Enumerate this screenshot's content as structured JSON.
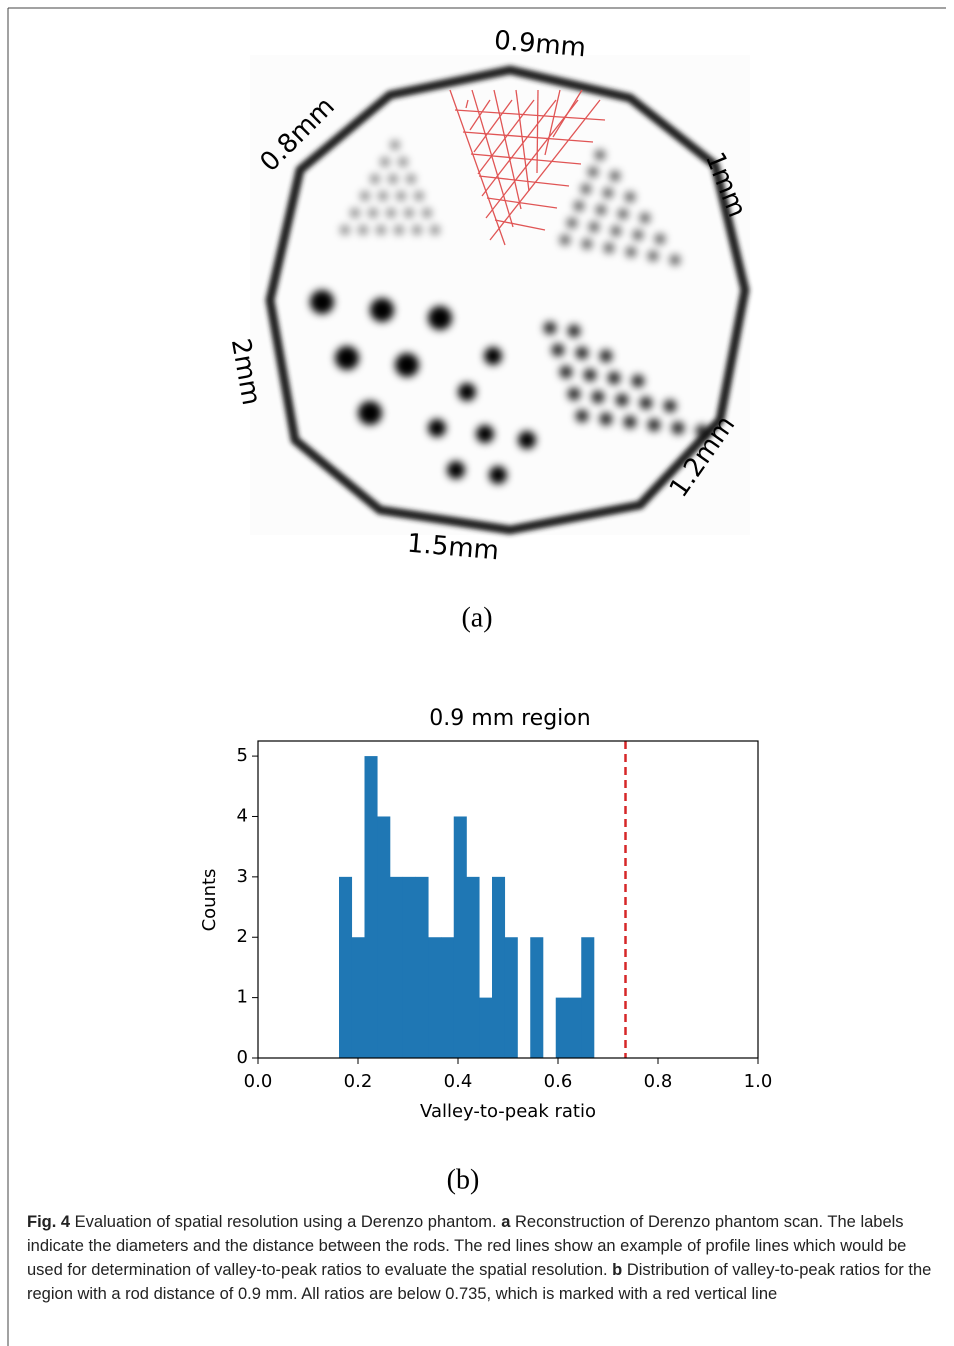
{
  "panel_a": {
    "labels": [
      "0.9mm",
      "0.8mm",
      "1mm",
      "2mm",
      "1.2mm",
      "1.5mm"
    ],
    "panel_label": "(a)"
  },
  "chart_data": {
    "type": "histogram",
    "title": "0.9 mm region",
    "x_label": "Valley-to-peak ratio",
    "y_label": "Counts",
    "bins": [
      0.162,
      0.1875,
      0.213,
      0.2385,
      0.264,
      0.2895,
      0.315,
      0.3405,
      0.366,
      0.3915,
      0.417,
      0.4425,
      0.468,
      0.4935,
      0.519,
      0.5445,
      0.57,
      0.5955,
      0.621,
      0.6465,
      0.672
    ],
    "counts": [
      3,
      2,
      5,
      4,
      3,
      3,
      3,
      2,
      2,
      4,
      3,
      1,
      3,
      2,
      0,
      2,
      0,
      1,
      1,
      2
    ],
    "color": "#1f77b4",
    "threshold": 0.735,
    "threshold_color": "#d62728",
    "xlim": [
      0,
      1
    ],
    "ylim": [
      0,
      5.25
    ],
    "xticks": [
      {
        "value": 0,
        "label": "0.0"
      },
      0.2,
      0.4,
      0.6,
      0.8,
      {
        "value": 1,
        "label": "1.0"
      }
    ],
    "yticks": [
      0,
      1,
      2,
      3,
      4,
      5
    ]
  },
  "panel_b_label": "(b)",
  "caption": {
    "figure_label": "Fig. 4",
    "text": " Evaluation of spatial resolution using a Derenzo phantom. ",
    "a": "a",
    "text_a": " Reconstruction of Derenzo phantom scan. The labels indicate the diameters and the distance between the rods. The red lines show an example of profile lines which would be used for determination of valley-to-peak ratios to evaluate the spatial resolution. ",
    "b": "b",
    "text_b": " Distribution of valley-to-peak ratios for the region with a rod distance of 0.9 mm. All ratios are below 0.735, which is marked with a red vertical line"
  }
}
